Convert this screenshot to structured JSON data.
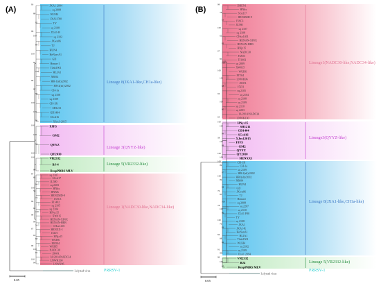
{
  "panels": [
    {
      "id": "A",
      "label": "(A)",
      "groups": [
        {
          "key": "lin8",
          "label": "Lineage 8(JXA1-like,CH1a-like)",
          "color": "#3a76c4",
          "bg": "#bfe3f7",
          "leaves": [
            "JXA1 2094",
            "sq 2008",
            "WUH4",
            "JXA1 F80",
            "TY",
            "sq 2108",
            "JXA1-R",
            "sq 2102",
            "JXwn06",
            "TJ",
            "HUN4",
            "HeNan-A1",
            "GD",
            "Henan-1",
            "TJnk1901",
            "HLJA1",
            "NB/04",
            "HB-1(sh)/2002",
            "HB-2(sh)/2002",
            "CH-1a",
            "sq 2108",
            "sq 2109",
            "CH-1R",
            "SH1211",
            "GD1404",
            "SCcd16",
            "XJzx1-2015"
          ],
          "boots": [
            "93",
            "88",
            "95",
            "96",
            "100",
            "89",
            "100",
            "96",
            "100",
            "99",
            "97",
            "99",
            "100",
            "100",
            "96"
          ]
        },
        {
          "key": "lin3",
          "label": "Lineage 3(QYYZ-like)",
          "color": "#c23bcf",
          "bg": "#f3c6f3",
          "leaves": [
            "FJFS",
            "GM2",
            "QYYZ",
            "QY2010"
          ],
          "boots": [
            "100",
            "100",
            "93",
            "100"
          ]
        },
        {
          "key": "lin5",
          "label": "Lineage 5(VR2332-like)",
          "color": "#1f8a3a",
          "bg": "#c7ecc7",
          "leaves": [
            "VR2332",
            "BJ-4",
            "RespPRRS MLV"
          ],
          "boots": [
            "100",
            "99"
          ]
        },
        {
          "key": "lin1",
          "label": "Lineage 1(NADC30-like,NADC34-like)",
          "color": "#e07090",
          "bg": "#f7c3cf",
          "leaves": [
            "sq 2107",
            "SCcd17",
            "JL580",
            "sq 2203",
            "HNhx",
            "HNXK",
            "HENZMD-9",
            "15SC3",
            "FJ1402",
            "sq 2105",
            "sq 2104",
            "HNyc15",
            "XW015",
            "HENAN-XINX",
            "HENAN-HEB",
            "CHsx1401",
            "HENXX-1",
            "15ZJ1",
            "HNjz15",
            "WUH6",
            "FJ0504",
            "WUH5",
            "NADC30",
            "JSWA",
            "IA/2014/NADC34",
            "LNWK130",
            "LNWK96"
          ],
          "boots": [
            "87",
            "62",
            "94",
            "100",
            "56",
            "73",
            "94",
            "61",
            "100",
            "98",
            "99",
            "54",
            "67",
            "63",
            "88",
            "99",
            "100",
            "95",
            "100",
            "94"
          ]
        },
        {
          "key": "prrsv1",
          "label": "PRRSV-1",
          "color": "#2ad0d0",
          "bg": "#ffffff",
          "leaves": [
            "Lelystad virus"
          ],
          "boots": []
        }
      ],
      "scale": "0.05"
    },
    {
      "id": "B",
      "label": "(B)",
      "groups": [
        {
          "key": "lin1",
          "label": "Lineage1(NADC30-like,NADC34-like)",
          "color": "#e07090",
          "bg": "#f7c3cf",
          "leaves": [
            "DHEN1",
            "HNhx",
            "SCcd17",
            "HENZMD-9",
            "15SC3",
            "JL580",
            "sq 2107",
            "sq 2108",
            "CHsx1401",
            "HENAN-XINX",
            "HENAN-HEB",
            "HNjz15",
            "NADC30",
            "FJZ03",
            "FJ1402",
            "sq 2009",
            "XW015",
            "WUH6",
            "FJY04",
            "LNWK96",
            "JSWA",
            "15ZJ1",
            "sq 2105",
            "sq 2104",
            "sq 2108",
            "sq 2109",
            "sq 2110",
            "sq 2203",
            "IA/2014/NADC34",
            "LNWK130"
          ],
          "boots": [
            "99",
            "78",
            "57",
            "100",
            "62",
            "82",
            "67",
            "85",
            "100",
            "100",
            "100",
            "98",
            "94",
            "100",
            "80",
            "63"
          ]
        },
        {
          "key": "lin3",
          "label": "Lineage3(QYYZ-like)",
          "color": "#c23bcf",
          "bg": "#f3c6f3",
          "leaves": [
            "HNyc15",
            "SH1211",
            "GD1404",
            "SCcd16",
            "XJzx12015",
            "FJFS",
            "GM2",
            "QYYZ",
            "QY2010",
            "HENXX1"
          ],
          "boots": [
            "100",
            "100",
            "99",
            "58",
            "100",
            "99",
            "100",
            "100"
          ]
        },
        {
          "key": "lin8",
          "label": "Lineage 8(JXA1-like,CH1a-like)",
          "color": "#3a76c4",
          "bg": "#bfe3f7",
          "leaves": [
            "CH-1R",
            "CH-1a",
            "sq 2109",
            "HB-2(sh)/2002",
            "HB1(sh)/2002",
            "NB/04",
            "HUN4",
            "GD",
            "JXwn06",
            "TJ",
            "Henan1",
            "sq 2008",
            "sq 2207",
            "sq 2110",
            "JXA1 F80",
            "TY",
            "sq 2108",
            "JXA1",
            "JXA1-R",
            "HeNanA1",
            "HLJA1",
            "TJnk1501",
            "WUH4",
            "sq 2102",
            "sq 2109",
            "JXA1 2094"
          ],
          "boots": [
            "100",
            "99",
            "97",
            "100",
            "99",
            "98",
            "76",
            "85",
            "100",
            "78",
            "100",
            "80",
            "100",
            "76",
            "83",
            "84",
            "68",
            "60",
            "91",
            "99"
          ]
        },
        {
          "key": "lin5",
          "label": "Lineage 5(VR2332-like)",
          "color": "#1f8a3a",
          "bg": "#c7ecc7",
          "leaves": [
            "VR2332",
            "BJ4",
            "RespPRRS MLV"
          ],
          "boots": [
            "99",
            "100",
            "65"
          ]
        },
        {
          "key": "prrsv1",
          "label": "PRRSV-1",
          "color": "#2ad0d0",
          "bg": "#ffffff",
          "leaves": [
            "Lelystad virus"
          ],
          "boots": []
        }
      ],
      "scale": "0.05"
    }
  ]
}
